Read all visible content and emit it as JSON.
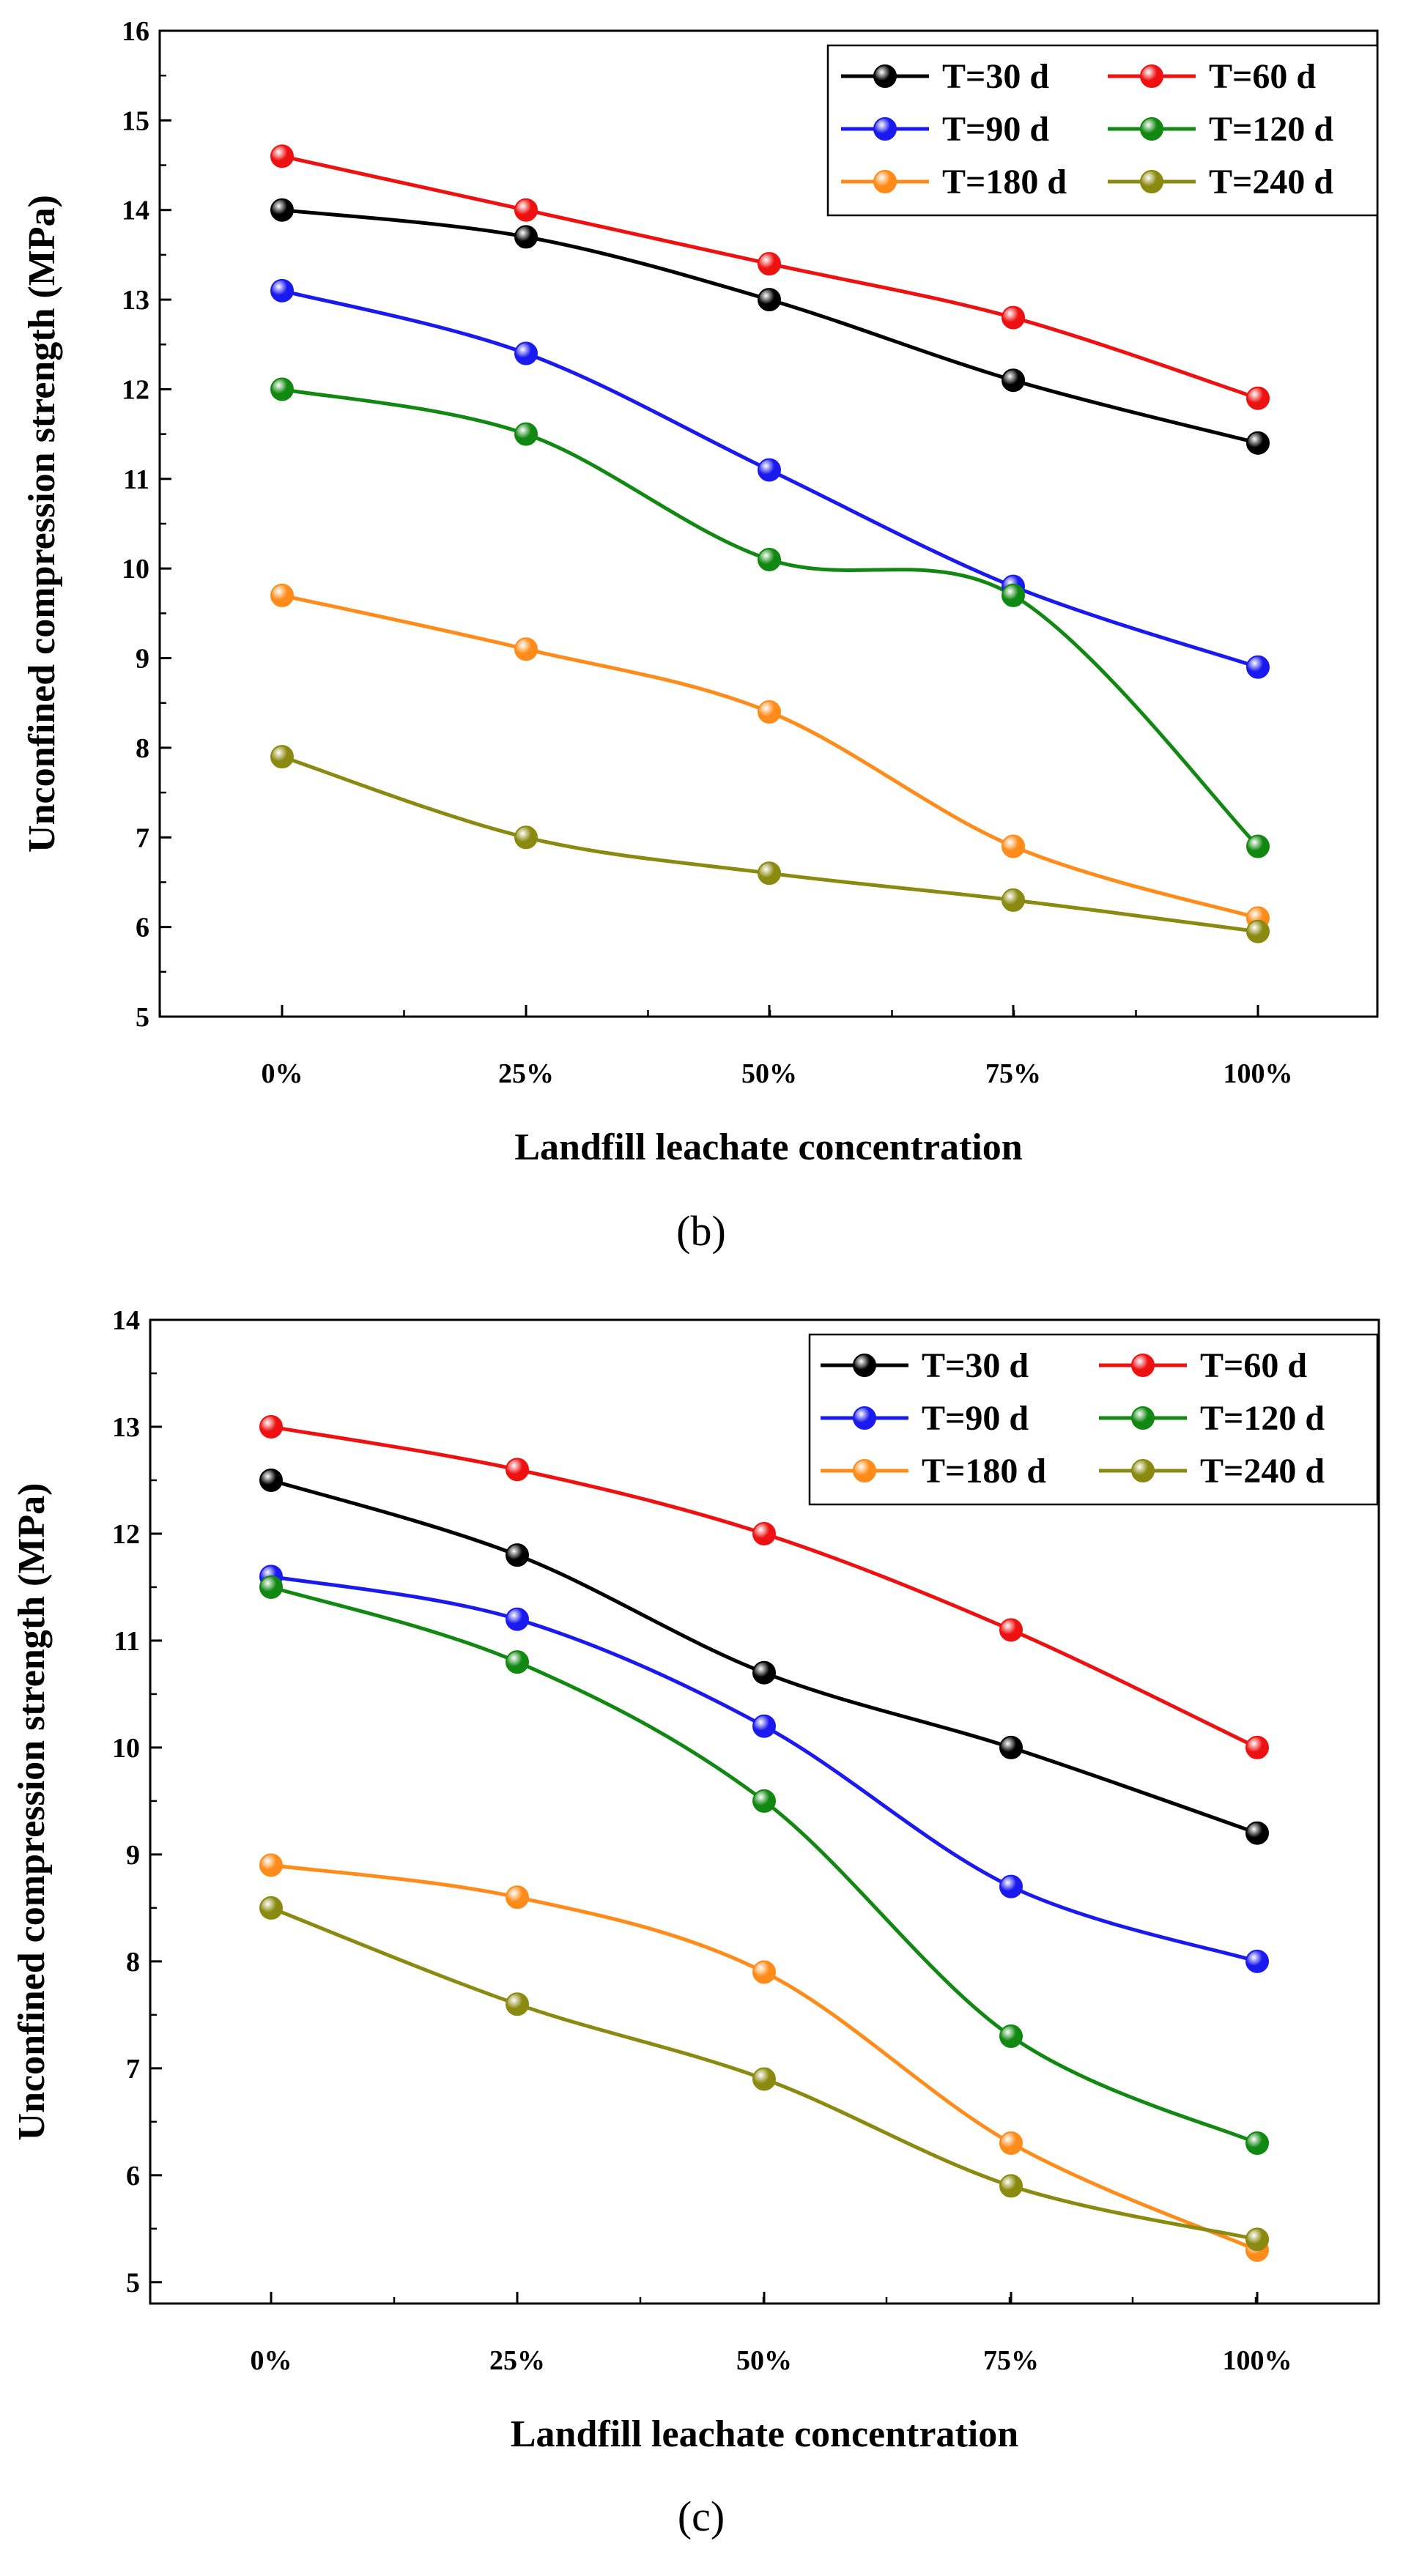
{
  "chart_data": [
    {
      "type": "line",
      "panel_label": "(b)",
      "xlabel": "Landfill leachate concentration",
      "ylabel": "Unconfined compression strength (MPa)",
      "categories": [
        "0%",
        "25%",
        "50%",
        "75%",
        "100%"
      ],
      "ylim": [
        5,
        16
      ],
      "yticks": [
        5,
        6,
        7,
        8,
        9,
        10,
        11,
        12,
        13,
        14,
        15,
        16
      ],
      "grid": false,
      "legend_position": "top-right",
      "series": [
        {
          "name": "T=30 d",
          "color": "#000000",
          "values": [
            14.0,
            13.7,
            13.0,
            12.1,
            11.4
          ]
        },
        {
          "name": "T=60 d",
          "color": "#ee1111",
          "values": [
            14.6,
            14.0,
            13.4,
            12.8,
            11.9
          ]
        },
        {
          "name": "T=90 d",
          "color": "#1a1aee",
          "values": [
            13.1,
            12.4,
            11.1,
            9.8,
            8.9
          ]
        },
        {
          "name": "T=120 d",
          "color": "#118811",
          "values": [
            12.0,
            11.5,
            10.1,
            9.7,
            6.9
          ]
        },
        {
          "name": "T=180 d",
          "color": "#ff8c1a",
          "values": [
            9.7,
            9.1,
            8.4,
            6.9,
            6.1
          ]
        },
        {
          "name": "T=240 d",
          "color": "#8a8a10",
          "values": [
            7.9,
            7.0,
            6.6,
            6.3,
            5.95
          ]
        }
      ]
    },
    {
      "type": "line",
      "panel_label": "(c)",
      "xlabel": "Landfill leachate concentration",
      "ylabel": "Unconfined compression strength (MPa)",
      "categories": [
        "0%",
        "25%",
        "50%",
        "75%",
        "100%"
      ],
      "ylim": [
        4.8,
        14
      ],
      "yticks": [
        5,
        6,
        7,
        8,
        9,
        10,
        11,
        12,
        13,
        14
      ],
      "grid": false,
      "legend_position": "top-right",
      "series": [
        {
          "name": "T=30 d",
          "color": "#000000",
          "values": [
            12.5,
            11.8,
            10.7,
            10.0,
            9.2
          ]
        },
        {
          "name": "T=60 d",
          "color": "#ee1111",
          "values": [
            13.0,
            12.6,
            12.0,
            11.1,
            10.0
          ]
        },
        {
          "name": "T=90 d",
          "color": "#1a1aee",
          "values": [
            11.6,
            11.2,
            10.2,
            8.7,
            8.0
          ]
        },
        {
          "name": "T=120 d",
          "color": "#118811",
          "values": [
            11.5,
            10.8,
            9.5,
            7.3,
            6.3
          ]
        },
        {
          "name": "T=180 d",
          "color": "#ff8c1a",
          "values": [
            8.9,
            8.6,
            7.9,
            6.3,
            5.3
          ]
        },
        {
          "name": "T=240 d",
          "color": "#8a8a10",
          "values": [
            8.5,
            7.6,
            6.9,
            5.9,
            5.4
          ]
        }
      ]
    }
  ]
}
